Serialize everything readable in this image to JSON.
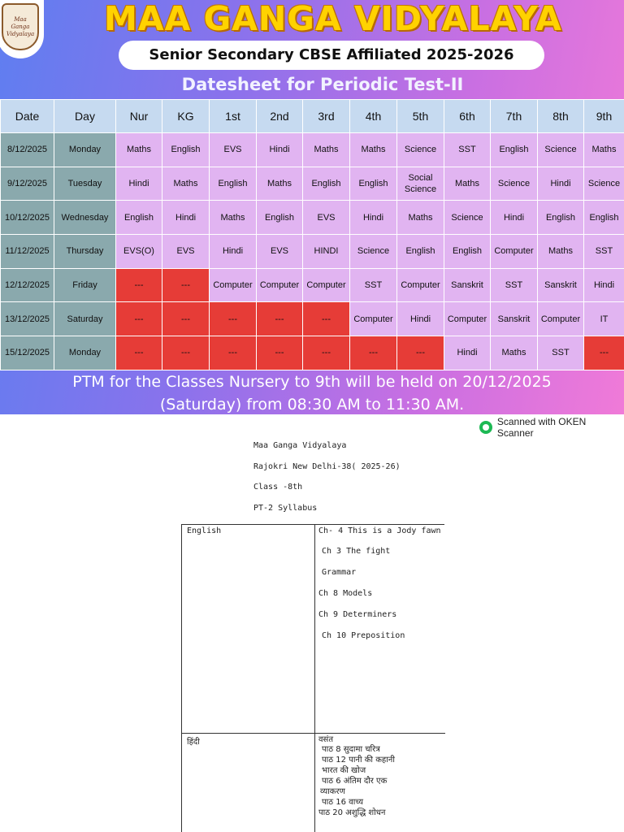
{
  "poster": {
    "logo_text": "Maa Ganga Vidyalaya",
    "school_name": "MAA GANGA VIDYALAYA",
    "affiliation": "Senior Secondary CBSE Affiliated 2025-2026",
    "title": "Datesheet for Periodic Test-II",
    "headers": [
      "Date",
      "Day",
      "Nur",
      "KG",
      "1st",
      "2nd",
      "3rd",
      "4th",
      "5th",
      "6th",
      "7th",
      "8th",
      "9th"
    ],
    "rows": [
      {
        "date": "8/12/2025",
        "day": "Monday",
        "cells": [
          "Maths",
          "English",
          "EVS",
          "Hindi",
          "Maths",
          "Maths",
          "Science",
          "SST",
          "English",
          "Science",
          "Maths"
        ]
      },
      {
        "date": "9/12/2025",
        "day": "Tuesday",
        "cells": [
          "Hindi",
          "Maths",
          "English",
          "Maths",
          "English",
          "English",
          "Social Science",
          "Maths",
          "Science",
          "Hindi",
          "Science"
        ]
      },
      {
        "date": "10/12/2025",
        "day": "Wednesday",
        "cells": [
          "English",
          "Hindi",
          "Maths",
          "English",
          "EVS",
          "Hindi",
          "Maths",
          "Science",
          "Hindi",
          "English",
          "English"
        ]
      },
      {
        "date": "11/12/2025",
        "day": "Thursday",
        "cells": [
          "EVS(O)",
          "EVS",
          "Hindi",
          "EVS",
          "HINDI",
          "Science",
          "English",
          "English",
          "Computer",
          "Maths",
          "SST"
        ]
      },
      {
        "date": "12/12/2025",
        "day": "Friday",
        "cells": [
          "---",
          "---",
          "Computer",
          "Computer",
          "Computer",
          "SST",
          "Computer",
          "Sanskrit",
          "SST",
          "Sanskrit",
          "Hindi"
        ]
      },
      {
        "date": "13/12/2025",
        "day": "Saturday",
        "cells": [
          "---",
          "---",
          "---",
          "---",
          "---",
          "Computer",
          "Hindi",
          "Computer",
          "Sanskrit",
          "Computer",
          "IT"
        ]
      },
      {
        "date": "15/12/2025",
        "day": "Monday",
        "cells": [
          "---",
          "---",
          "---",
          "---",
          "---",
          "---",
          "---",
          "Hindi",
          "Maths",
          "SST",
          "---"
        ]
      }
    ],
    "ptm_line1": "PTM for the Classes Nursery to 9th will be held on 20/12/2025",
    "ptm_line2": "(Saturday) from 08:30 AM to 11:30 AM.",
    "colors": {
      "header": "#c6daf0",
      "date_col": "#8aa9ad",
      "subject": "#e1b4f1",
      "no_exam": "#e63c37"
    }
  },
  "scan": {
    "watermark": "Scanned with OKEN Scanner",
    "school": "Maa Ganga Vidyalaya",
    "address": "Rajokri  New Delhi-38( 2025-26)",
    "class": "Class -8th",
    "syllabus_title": "PT-2 Syllabus",
    "english": {
      "subject": "English",
      "topics": [
        "Ch- 4 This is a Jody fawn",
        "Ch 3 The fight",
        "Grammar",
        "Ch 8 Models",
        "Ch 9 Determiners",
        "Ch 10 Preposition"
      ]
    },
    "hindi": {
      "subject": "हिंदी",
      "topics": [
        "वसंत",
        "पाठ 8 सुदामा चरित्र",
        "पाठ 12 पानी की कहानी",
        "भारत की खोज",
        "पाठ 6 अंतिम दौर एक",
        "व्याकरण",
        "पाठ 16 वाच्य",
        "पाठ 20 अशुद्धि शोधन"
      ]
    }
  }
}
